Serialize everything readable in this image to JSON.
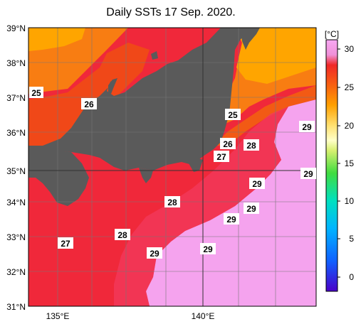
{
  "title": "Daily SSTs 17 Sep. 2020.",
  "map": {
    "lat_labels": [
      "39°N",
      "38°N",
      "37°N",
      "36°N",
      "35°N",
      "34°N",
      "33°N",
      "32°N",
      "31°N"
    ],
    "lon_labels": [
      "135°E",
      "140°E"
    ],
    "contour_labels": [
      "25",
      "26",
      "25",
      "26",
      "27",
      "28",
      "29",
      "29",
      "29",
      "28",
      "29",
      "29",
      "28",
      "27",
      "29",
      "29"
    ]
  },
  "colorbar": {
    "unit": "[°C]",
    "ticks": [
      "30",
      "25",
      "20",
      "15",
      "10",
      "5",
      "0"
    ]
  },
  "colors": {
    "land": "#5a5a5a",
    "sst_29_plus": "#f5a3ee",
    "sst_28": "#f52d4d",
    "sst_27": "#ee2222",
    "sst_26": "#f24a14",
    "sst_25": "#f87d12",
    "sst_24": "#ffa000"
  }
}
